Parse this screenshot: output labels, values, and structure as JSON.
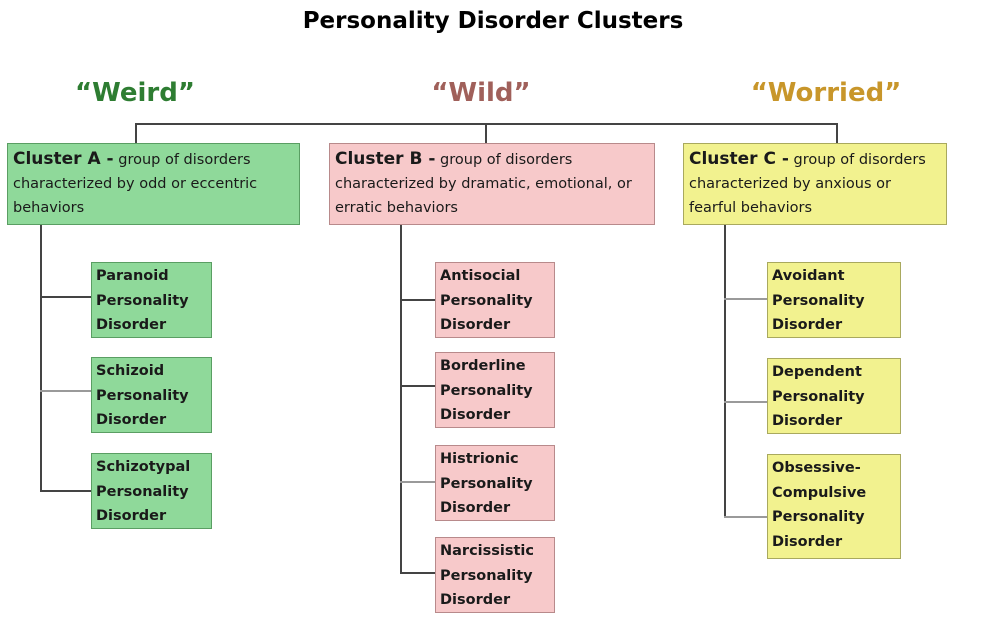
{
  "title": "Personality Disorder Clusters",
  "colors": {
    "weird": "#2e7d32",
    "wild": "#a0605a",
    "worried": "#c8962a"
  },
  "clusters": [
    {
      "nickname": "“Weird”",
      "name": "Cluster A -",
      "description": " group of disorders characterized by odd or eccentric behaviors",
      "disorders": [
        "Paranoid\nPersonality\nDisorder",
        "Schizoid\nPersonality\nDisorder",
        "Schizotypal\nPersonality\nDisorder"
      ]
    },
    {
      "nickname": "“Wild”",
      "name": "Cluster B -",
      "description": " group of disorders characterized by dramatic, emotional, or erratic behaviors",
      "disorders": [
        "Antisocial\nPersonality\nDisorder",
        "Borderline\nPersonality\nDisorder",
        "Histrionic\nPersonality\nDisorder",
        "Narcissistic\nPersonality\nDisorder"
      ]
    },
    {
      "nickname": "“Worried”",
      "name": "Cluster C -",
      "description": " group of disorders characterized by anxious or fearful behaviors",
      "disorders": [
        "Avoidant\nPersonality\nDisorder",
        "Dependent\nPersonality\nDisorder",
        "Obsessive-\nCompulsive\nPersonality\nDisorder"
      ]
    }
  ]
}
